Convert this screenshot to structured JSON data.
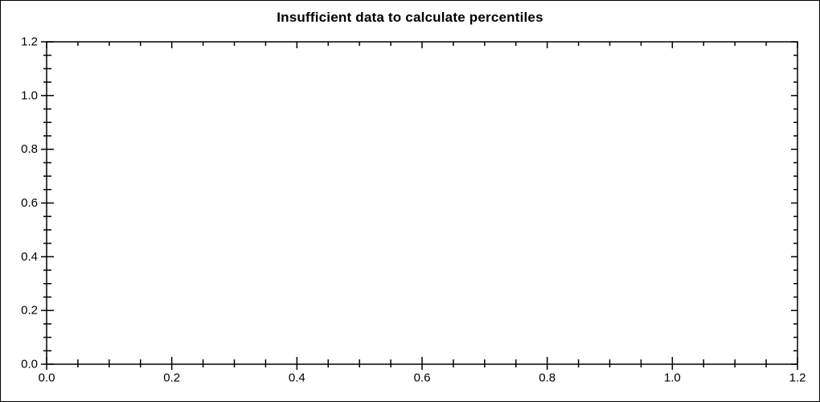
{
  "figure": {
    "background": "#ffffff",
    "frame_color": "#000000"
  },
  "chart_data": {
    "type": "scatter",
    "title": "Insufficient data to calculate percentiles",
    "series": [],
    "plot_is_empty": true,
    "xlabel": "",
    "ylabel": "",
    "xlim": [
      0.0,
      1.2
    ],
    "ylim": [
      0.0,
      1.2
    ],
    "x_ticks": [
      "0.0",
      "0.2",
      "0.4",
      "0.6",
      "0.8",
      "1.0",
      "1.2"
    ],
    "y_ticks": [
      "0.0",
      "0.2",
      "0.4",
      "0.6",
      "0.8",
      "1.0",
      "1.2"
    ],
    "minor_ticks_between_majors": 3,
    "grid": false,
    "legend": null,
    "axis_color": "#000000",
    "box_frame": true
  }
}
